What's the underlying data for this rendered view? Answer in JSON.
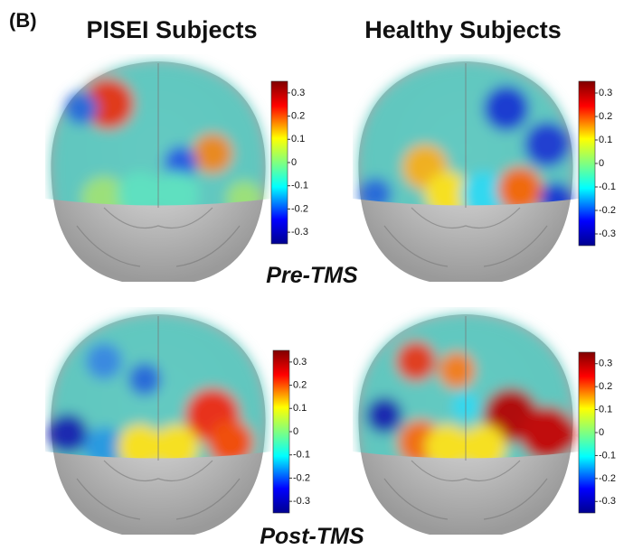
{
  "panel_label": "(B)",
  "columns": [
    "PISEI Subjects",
    "Healthy Subjects"
  ],
  "rows": [
    "Pre-TMS",
    "Post-TMS"
  ],
  "colorbar": {
    "lim": [
      -0.35,
      0.35
    ],
    "ticks": [
      0.3,
      0.2,
      0.1,
      0,
      -0.1,
      -0.2,
      -0.3
    ]
  }
}
